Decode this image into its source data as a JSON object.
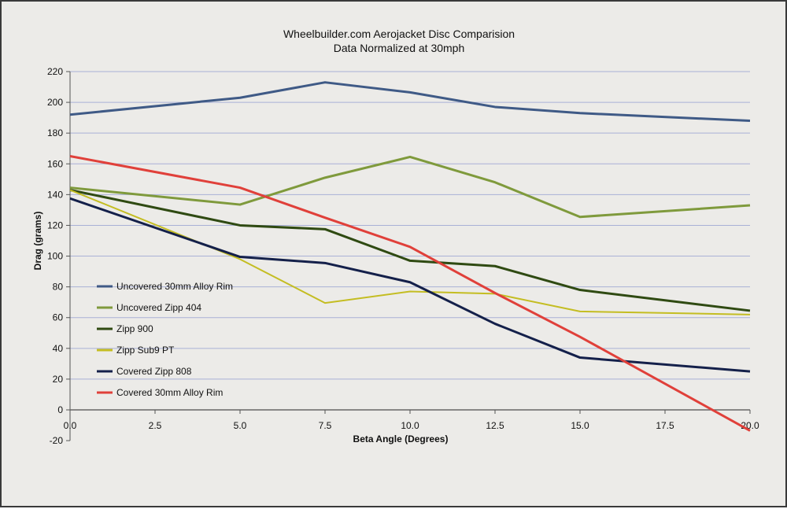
{
  "chart_data": {
    "type": "line",
    "title": "Wheelbuilder.com Aerojacket Disc Comparision",
    "subtitle": "Data Normalized at 30mph",
    "xlabel": "Beta Angle (Degrees)",
    "ylabel": "Drag (grams)",
    "xlim": [
      0,
      20
    ],
    "ylim": [
      -20,
      220
    ],
    "xticks": [
      "0.0",
      "2.5",
      "5.0",
      "7.5",
      "10.0",
      "12.5",
      "15.0",
      "17.5",
      "20.0"
    ],
    "yticks": [
      "-20",
      "0",
      "20",
      "40",
      "60",
      "80",
      "100",
      "120",
      "140",
      "160",
      "180",
      "200",
      "220"
    ],
    "grid": "horizontal",
    "legend": "left-center",
    "x": [
      0,
      5,
      7.5,
      10,
      12.5,
      15,
      20
    ],
    "series": [
      {
        "name": "Uncovered 30mm Alloy Rim",
        "color": "#3f5a86",
        "values": [
          192,
          203,
          213,
          206.5,
          197,
          193,
          188
        ]
      },
      {
        "name": "Uncovered Zipp 404",
        "color": "#7f9a3c",
        "values": [
          144.5,
          133.5,
          151,
          164.5,
          148,
          125.5,
          133
        ]
      },
      {
        "name": "Zipp 900",
        "color": "#2f4a12",
        "values": [
          143,
          120,
          117.5,
          97,
          93.5,
          78,
          64.5
        ]
      },
      {
        "name": "Zipp Sub9 PT",
        "color": "#c4bd22",
        "values": [
          143,
          98,
          69.5,
          77,
          75.5,
          64,
          62
        ]
      },
      {
        "name": "Covered Zipp 808",
        "color": "#14204a",
        "values": [
          137.5,
          99.5,
          95.5,
          83,
          56,
          34,
          25
        ]
      },
      {
        "name": "Covered 30mm Alloy Rim",
        "color": "#e0403a",
        "values": [
          165,
          144.5,
          125,
          106,
          76,
          47.5,
          -13.5
        ]
      }
    ]
  }
}
